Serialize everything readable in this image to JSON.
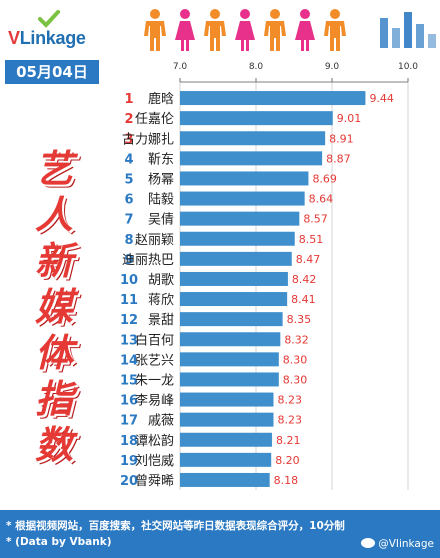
{
  "brand": {
    "v": "V",
    "rest": "Linkage"
  },
  "date": "05月04日",
  "side_title": [
    "艺",
    "人",
    "新",
    "媒",
    "体",
    "指",
    "数"
  ],
  "footer": {
    "line1": "* 根据视频网站，百度搜索，社交网站等昨日数据表现综合评分，10分制",
    "line2": "* (Data by Vbank)",
    "weibo": "@VIinkage"
  },
  "colors": {
    "bar": "#3e8fcc",
    "rank_top": "#e53935",
    "rank_other": "#2b79c2",
    "value": "#e53935",
    "header_blue": "#2b79c2",
    "person_orange": "#f28c28",
    "person_pink": "#e8318a"
  },
  "people_icons": [
    "male-icon",
    "female-icon",
    "male-icon",
    "female-icon",
    "male-icon",
    "female-icon",
    "male-icon"
  ],
  "chart_data": {
    "type": "bar",
    "orientation": "horizontal",
    "xlim": [
      7.0,
      10.0
    ],
    "xticks": [
      "7.0",
      "8.0",
      "9.0",
      "10.0"
    ],
    "grid": true,
    "categories": [
      "鹿晗",
      "任嘉伦",
      "古力娜扎",
      "靳东",
      "杨幂",
      "陆毅",
      "吴倩",
      "赵丽颖",
      "迪丽热巴",
      "胡歌",
      "蒋欣",
      "景甜",
      "白百何",
      "张艺兴",
      "朱一龙",
      "李易峰",
      "戚薇",
      "谭松韵",
      "刘恺威",
      "曾舜晞"
    ],
    "ranks": [
      "1",
      "2",
      "3",
      "4",
      "5",
      "6",
      "7",
      "8",
      "9",
      "10",
      "11",
      "12",
      "13",
      "14",
      "15",
      "16",
      "17",
      "18",
      "19",
      "20"
    ],
    "values": [
      9.44,
      9.01,
      8.91,
      8.87,
      8.69,
      8.64,
      8.57,
      8.51,
      8.47,
      8.42,
      8.41,
      8.35,
      8.32,
      8.3,
      8.3,
      8.23,
      8.23,
      8.21,
      8.2,
      8.18
    ],
    "value_labels": [
      "9.44",
      "9.01",
      "8.91",
      "8.87",
      "8.69",
      "8.64",
      "8.57",
      "8.51",
      "8.47",
      "8.42",
      "8.41",
      "8.35",
      "8.32",
      "8.30",
      "8.30",
      "8.23",
      "8.23",
      "8.21",
      "8.20",
      "8.18"
    ]
  }
}
